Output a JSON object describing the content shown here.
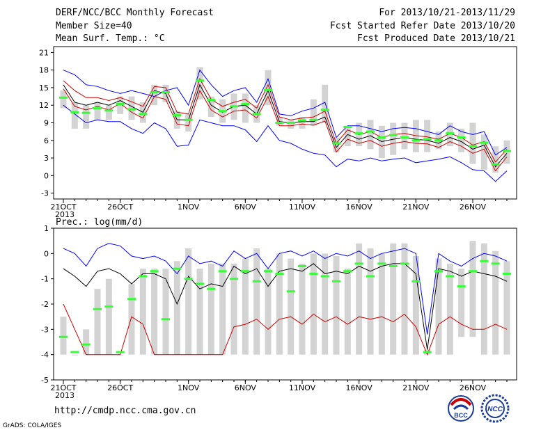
{
  "header": {
    "title": "DERF/NCC/BCC Monthly Forecast",
    "member_size": "Member Size=40",
    "variable": "Mean Surf. Temp.: °C",
    "period": "For 2013/10/21-2013/11/29",
    "refer_date": "Fcst Started Refer Date 2013/10/20",
    "produced_date": "Fcst Produced Date 2013/10/21"
  },
  "footer": {
    "url": "http://cmdp.ncc.cma.gov.cn",
    "grads": "GrADS: COLA/IGES",
    "logo1_text": "BCC",
    "logo2_text": "NCC"
  },
  "colors": {
    "bar": "#d3d3d3",
    "mean": "#000000",
    "envelope": "#0000ff",
    "inner": "#cc0000",
    "median": "#33ff33"
  },
  "chart_data": [
    {
      "type": "line",
      "title": "Mean Surf. Temp.: °C",
      "x_start_label": "21OCT",
      "x_year_label": "2013",
      "x_tick_labels": [
        "21OCT",
        "26OCT",
        "1NOV",
        "6NOV",
        "11NOV",
        "16NOV",
        "21NOV",
        "26NOV"
      ],
      "y_ticks": [
        -3,
        0,
        3,
        6,
        9,
        12,
        15,
        18,
        21
      ],
      "ylim": [
        -4,
        22
      ],
      "n_days": 40,
      "series": [
        {
          "values": [
            15.5,
            12.5,
            12.0,
            12.5,
            12.0,
            12.8,
            11.8,
            10.8,
            14.5,
            14.0,
            9.5,
            9.5,
            15.5,
            12.0,
            10.8,
            11.8,
            12.0,
            10.5,
            14.5,
            9.2,
            9.0,
            9.2,
            9.2,
            10.0,
            4.8,
            7.0,
            6.2,
            6.8,
            5.8,
            6.2,
            6.5,
            6.2,
            6.0,
            5.5,
            6.5,
            5.8,
            4.5,
            5.2,
            1.5,
            3.8
          ]
        },
        {
          "values": [
            18.0,
            17.2,
            15.5,
            15.2,
            14.5,
            14.0,
            14.5,
            14.0,
            13.5,
            14.5,
            15.0,
            12.0,
            18.0,
            15.5,
            13.5,
            14.5,
            15.0,
            12.5,
            16.5,
            10.5,
            10.2,
            11.0,
            11.5,
            12.5,
            6.5,
            8.5,
            8.5,
            8.0,
            7.5,
            8.0,
            8.2,
            8.0,
            7.5,
            7.0,
            8.5,
            7.5,
            7.0,
            7.5,
            3.5,
            4.8
          ]
        },
        {
          "values": [
            12.0,
            10.5,
            9.0,
            9.5,
            9.2,
            9.2,
            8.0,
            7.2,
            9.0,
            8.0,
            5.0,
            5.2,
            9.5,
            9.0,
            8.5,
            8.5,
            7.8,
            5.8,
            8.5,
            6.0,
            5.5,
            4.5,
            3.8,
            3.5,
            1.5,
            2.8,
            2.5,
            3.0,
            2.5,
            2.8,
            3.0,
            2.2,
            2.5,
            2.8,
            3.2,
            2.2,
            1.0,
            0.8,
            -1.0,
            0.8
          ]
        },
        {
          "values": [
            16.2,
            14.5,
            13.3,
            13.3,
            12.8,
            13.3,
            12.6,
            11.8,
            15.2,
            15.0,
            10.8,
            10.5,
            16.5,
            13.0,
            11.8,
            12.5,
            13.0,
            11.5,
            15.5,
            10.0,
            9.5,
            9.8,
            10.0,
            11.0,
            5.5,
            7.8,
            7.0,
            7.5,
            6.5,
            7.0,
            7.2,
            6.8,
            6.6,
            6.2,
            7.2,
            6.5,
            5.2,
            5.8,
            2.3,
            4.5
          ]
        },
        {
          "values": [
            14.8,
            11.8,
            11.2,
            11.8,
            11.2,
            12.3,
            10.8,
            9.8,
            13.5,
            13.0,
            8.8,
            8.5,
            14.5,
            11.2,
            10.0,
            11.0,
            11.2,
            9.8,
            13.5,
            8.5,
            8.5,
            8.8,
            8.6,
            9.3,
            4.0,
            6.2,
            5.5,
            6.0,
            5.0,
            5.5,
            5.8,
            5.5,
            5.4,
            4.8,
            5.8,
            5.0,
            3.8,
            4.5,
            0.8,
            3.2
          ]
        }
      ],
      "bars_low": [
        11.5,
        8.0,
        8.0,
        9.5,
        9.5,
        10.5,
        9.5,
        9.0,
        12.0,
        12.5,
        8.0,
        7.5,
        13.0,
        10.0,
        9.0,
        9.5,
        9.0,
        9.0,
        12.0,
        8.5,
        8.0,
        8.0,
        8.5,
        9.0,
        4.0,
        5.0,
        5.0,
        4.5,
        3.0,
        3.5,
        4.5,
        4.0,
        4.0,
        4.5,
        5.0,
        4.0,
        2.0,
        1.0,
        0.5,
        2.0
      ],
      "bars_high": [
        14.5,
        12.5,
        12.0,
        12.5,
        12.0,
        13.5,
        13.5,
        12.5,
        15.5,
        15.5,
        11.0,
        10.5,
        18.5,
        13.5,
        13.0,
        14.0,
        14.0,
        12.0,
        18.0,
        10.0,
        9.5,
        10.0,
        13.0,
        15.5,
        6.5,
        8.5,
        9.0,
        9.5,
        8.5,
        9.0,
        9.0,
        9.5,
        9.5,
        7.5,
        9.0,
        8.0,
        9.0,
        7.0,
        5.0,
        6.0
      ],
      "median": [
        13.3,
        10.8,
        10.7,
        11.5,
        11.1,
        12.2,
        11.3,
        10.5,
        14.2,
        14.2,
        10.3,
        9.5,
        16.2,
        12.9,
        11.0,
        11.8,
        12.2,
        10.5,
        14.6,
        9.0,
        9.0,
        9.4,
        9.5,
        11.2,
        5.5,
        8.3,
        7.2,
        7.5,
        6.5,
        6.9,
        6.5,
        6.0,
        6.2,
        6.0,
        7.2,
        6.5,
        5.0,
        5.6,
        1.9,
        4.2
      ]
    },
    {
      "type": "line",
      "title": "Prec.: log(mm/d)",
      "x_start_label": "21OCT",
      "x_year_label": "2013",
      "x_tick_labels": [
        "21OCT",
        "26OCT",
        "1NOV",
        "6NOV",
        "11NOV",
        "16NOV",
        "21NOV",
        "26NOV"
      ],
      "y_ticks": [
        -5,
        -4,
        -3,
        -2,
        -1,
        0,
        1
      ],
      "ylim": [
        -5,
        1
      ],
      "n_days": 40,
      "series": [
        {
          "values": [
            -0.6,
            -0.9,
            -1.3,
            -0.7,
            -0.6,
            -0.8,
            -1.2,
            -0.8,
            -0.8,
            -1.0,
            -2.0,
            -0.9,
            -1.4,
            -1.2,
            -1.3,
            -0.5,
            -0.8,
            -0.6,
            -1.3,
            -0.7,
            -0.6,
            -0.7,
            -0.4,
            -0.8,
            -0.7,
            -0.8,
            -0.5,
            -0.7,
            -0.5,
            -0.4,
            -0.4,
            -0.8,
            -3.8,
            -0.6,
            -0.7,
            -0.9,
            -0.7,
            -0.8,
            -0.9,
            -1.1
          ]
        },
        {
          "values": [
            0.2,
            0.0,
            -0.5,
            0.2,
            0.4,
            0.3,
            -0.1,
            -0.2,
            -0.1,
            -0.3,
            -0.8,
            -0.1,
            -0.4,
            -0.3,
            -0.5,
            0.1,
            -0.2,
            0.0,
            -0.6,
            0.0,
            0.1,
            -0.1,
            0.1,
            -0.2,
            0.0,
            -0.1,
            0.1,
            -0.2,
            0.0,
            0.1,
            0.2,
            0.0,
            -3.2,
            0.0,
            -0.3,
            -0.5,
            -0.2,
            0.0,
            -0.1,
            -0.3
          ]
        },
        {
          "values": [
            -2.0,
            -3.0,
            -4.0,
            -4.0,
            -4.0,
            -4.0,
            -2.5,
            -2.8,
            -4.0,
            -4.0,
            -4.0,
            -4.0,
            -4.0,
            -4.0,
            -4.0,
            -2.9,
            -2.8,
            -2.6,
            -3.0,
            -2.6,
            -2.5,
            -2.8,
            -2.4,
            -2.7,
            -2.5,
            -2.8,
            -2.5,
            -2.6,
            -2.5,
            -2.7,
            -2.4,
            -2.9,
            -4.0,
            -2.8,
            -2.5,
            -2.8,
            -3.0,
            -3.0,
            -2.8,
            -3.0
          ]
        }
      ],
      "bars_low": [
        -4.0,
        -4.0,
        -4.0,
        -4.0,
        -4.0,
        -4.0,
        -4.0,
        -4.0,
        -4.0,
        -4.0,
        -4.0,
        -4.0,
        -4.0,
        -4.0,
        -4.0,
        -4.0,
        -4.0,
        -4.0,
        -4.0,
        -4.0,
        -4.0,
        -4.0,
        -4.0,
        -4.0,
        -4.0,
        -4.0,
        -4.0,
        -4.0,
        -4.0,
        -4.0,
        -4.0,
        -4.0,
        -4.0,
        -4.0,
        -4.0,
        -3.3,
        -3.3,
        -4.0,
        -4.0,
        -4.0
      ],
      "bars_high": [
        -2.5,
        -4.0,
        -3.0,
        -1.4,
        -1.0,
        -4.0,
        -1.2,
        -0.6,
        -0.6,
        -0.6,
        -0.3,
        0.2,
        -0.6,
        -0.4,
        -0.4,
        -0.4,
        -0.2,
        0.2,
        -0.6,
        0.0,
        -0.2,
        -0.4,
        0.0,
        0.0,
        -0.1,
        -0.6,
        0.4,
        0.2,
        0.0,
        0.4,
        0.4,
        -0.1,
        -3.8,
        -0.2,
        -0.4,
        -0.6,
        0.5,
        0.4,
        0.1,
        -0.3
      ],
      "median": [
        -3.3,
        -3.9,
        -3.6,
        -2.2,
        -2.1,
        -3.9,
        -1.8,
        -0.9,
        -0.7,
        -2.6,
        -0.6,
        -1.0,
        -1.2,
        -1.4,
        -0.7,
        -1.0,
        -0.7,
        -1.1,
        -0.7,
        -0.8,
        -1.5,
        -0.5,
        -0.8,
        -0.9,
        -1.1,
        -0.7,
        -0.4,
        -0.9,
        -0.4,
        -0.5,
        -0.4,
        -1.1,
        -3.9,
        -0.7,
        -0.9,
        -1.3,
        -0.7,
        -0.3,
        -0.4,
        -0.8
      ]
    }
  ]
}
